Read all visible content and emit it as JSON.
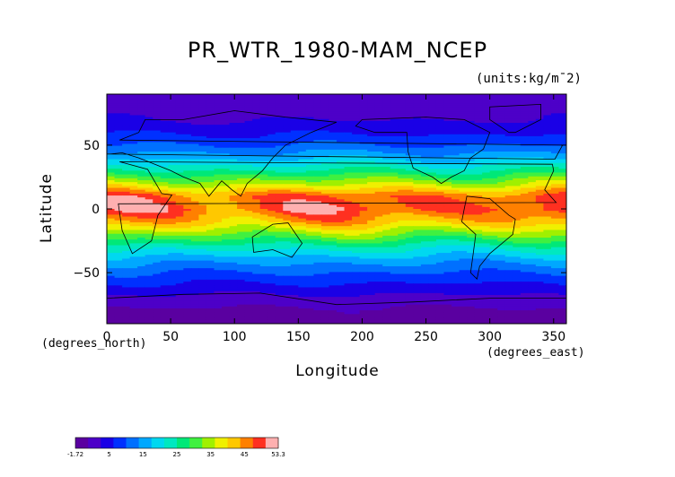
{
  "chart_data": {
    "type": "heatmap",
    "title": "PR_WTR_1980-MAM_NCEP",
    "units_label": "(units:kg/m¯2)",
    "xlabel": "Longitude",
    "ylabel": "Latitude",
    "x_units": "(degrees_east)",
    "y_units": "(degrees_north)",
    "xlim": [
      0,
      360
    ],
    "ylim": [
      -90,
      90
    ],
    "x_ticks": [
      0,
      50,
      100,
      150,
      200,
      250,
      300,
      350
    ],
    "y_ticks": [
      -50,
      0,
      50
    ],
    "colorbar": {
      "min": -1.72,
      "max": 53.3,
      "tick_labels": [
        "-1.72",
        "5",
        "15",
        "25",
        "35",
        "45",
        "53.3"
      ],
      "colors": [
        "#5a00a0",
        "#4d00c8",
        "#1a00e6",
        "#0030ff",
        "#0070ff",
        "#00a8ff",
        "#00d8f0",
        "#00e8c0",
        "#00e878",
        "#40f040",
        "#a0f000",
        "#f0f000",
        "#ffc800",
        "#ff8000",
        "#ff3020",
        "#ffb0b0"
      ]
    },
    "latitude_profile_kg_m2": [
      {
        "lat": 85,
        "value": 3
      },
      {
        "lat": 70,
        "value": 5
      },
      {
        "lat": 60,
        "value": 8
      },
      {
        "lat": 50,
        "value": 12
      },
      {
        "lat": 40,
        "value": 18
      },
      {
        "lat": 30,
        "value": 26
      },
      {
        "lat": 20,
        "value": 35
      },
      {
        "lat": 10,
        "value": 46
      },
      {
        "lat": 0,
        "value": 48
      },
      {
        "lat": -10,
        "value": 42
      },
      {
        "lat": -20,
        "value": 33
      },
      {
        "lat": -30,
        "value": 24
      },
      {
        "lat": -40,
        "value": 17
      },
      {
        "lat": -50,
        "value": 12
      },
      {
        "lat": -60,
        "value": 8
      },
      {
        "lat": -70,
        "value": 4
      },
      {
        "lat": -80,
        "value": 1
      }
    ]
  }
}
